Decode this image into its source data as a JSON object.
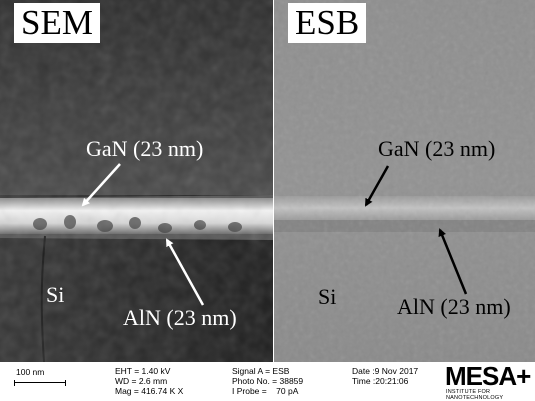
{
  "panels": {
    "sem": {
      "tag": "SEM",
      "label_gan": "GaN (23 nm)",
      "label_si": "Si",
      "label_aln": "AlN (23 nm)"
    },
    "esb": {
      "tag": "ESB",
      "label_gan": "GaN (23 nm)",
      "label_si": "Si",
      "label_aln": "AlN (23 nm)"
    }
  },
  "info_bar": {
    "scale_text": "100 nm",
    "eht": "EHT = 1.40 kV",
    "wd": "WD = 2.6 mm",
    "mag": "Mag = 416.74 K X",
    "signal": "Signal A = ESB",
    "photo": "Photo No. = 38859",
    "probe": "I Probe =    70 pA",
    "date": "Date :9 Nov 2017",
    "time": "Time :20:21:06",
    "logo": "MESA+",
    "logo_sub": "INSTITUTE FOR NANOTECHNOLOGY"
  },
  "colors": {
    "sem_background": "#3a3a3a",
    "esb_background": "#8c8c8c",
    "sem_layer": "#e8e8e8",
    "esb_layer": "#b8b8b8"
  }
}
